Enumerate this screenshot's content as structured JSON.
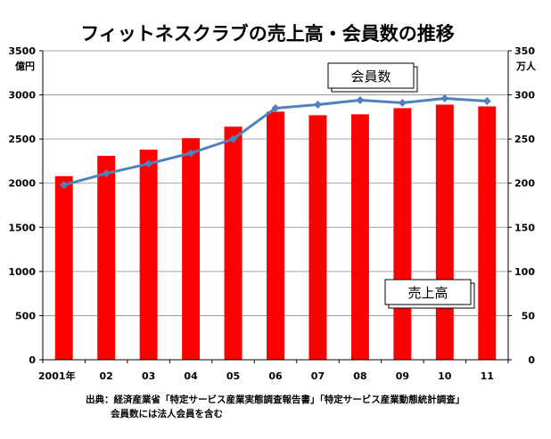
{
  "chart_data": {
    "type": "bar",
    "title": "フィットネスクラブの売上高・会員数の推移",
    "categories": [
      "2001年",
      "02",
      "03",
      "04",
      "05",
      "06",
      "07",
      "08",
      "09",
      "10",
      "11"
    ],
    "series": [
      {
        "name": "売上高",
        "type": "bar",
        "axis": "left",
        "color": "#ff0000",
        "values": [
          2080,
          2310,
          2380,
          2510,
          2640,
          2810,
          2770,
          2780,
          2850,
          2890,
          2870
        ]
      },
      {
        "name": "会員数",
        "type": "line",
        "axis": "right",
        "color": "#4f81bd",
        "values": [
          198,
          211,
          222,
          234,
          250,
          285,
          289,
          294,
          291,
          296,
          293
        ]
      }
    ],
    "y_left": {
      "unit": "億円",
      "ylim": [
        0,
        3500
      ],
      "ticks": [
        "0",
        "500",
        "1000",
        "1500",
        "2000",
        "2500",
        "3000",
        "3500"
      ]
    },
    "y_right": {
      "unit": "万人",
      "ylim": [
        0,
        350
      ],
      "ticks": [
        "0",
        "50",
        "100",
        "150",
        "200",
        "250",
        "300",
        "350"
      ]
    },
    "grid": true,
    "notes": [
      "出典：経済産業省「特定サービス産業実態調査報告書」「特定サービス産業動態統計調査」",
      "会員数には法人会員を含む"
    ]
  }
}
